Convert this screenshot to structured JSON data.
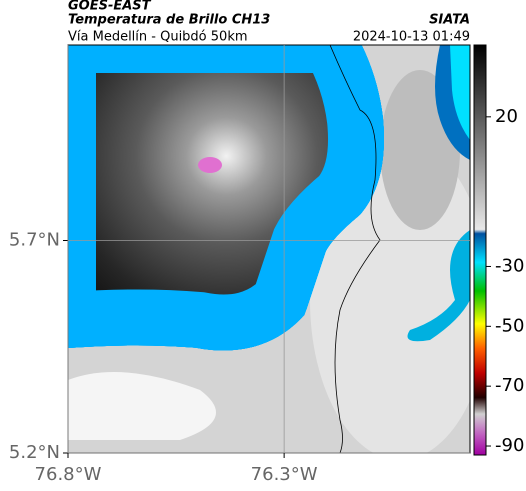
{
  "header": {
    "satellite": "GOES-EAST",
    "title": "Temperatura de Brillo CH13",
    "subtitle": "Vía Medellín - Quibdó 50km",
    "source": "SIATA",
    "datetime": "2024-10-13 01:49"
  },
  "map": {
    "lonlim": [
      -76.8,
      -75.87
    ],
    "latlim": [
      5.2,
      6.16
    ],
    "lat_ticks": [
      {
        "value": 5.7,
        "label": "5.7°N"
      },
      {
        "value": 5.2,
        "label": "5.2°N"
      }
    ],
    "lon_ticks": [
      {
        "value": -76.8,
        "label": "76.8°W"
      },
      {
        "value": -76.3,
        "label": "76.3°W"
      }
    ]
  },
  "colorbar": {
    "lim": [
      -93,
      44
    ],
    "ticks": [
      20,
      -30,
      -50,
      -70,
      -90
    ]
  }
}
